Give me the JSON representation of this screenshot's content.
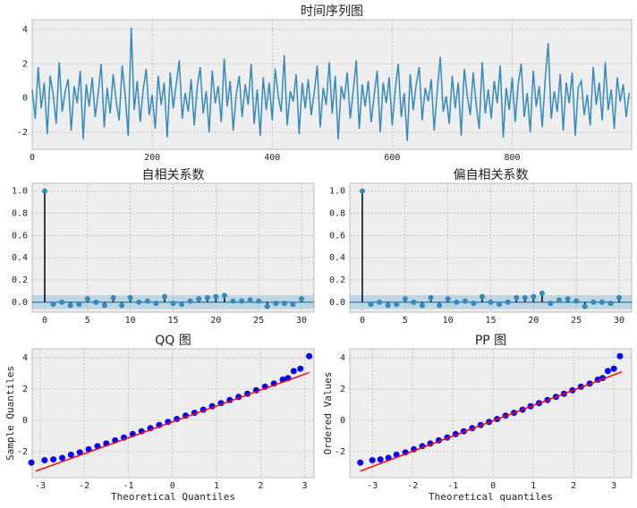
{
  "chart_data": [
    {
      "type": "line",
      "title": "时间序列图",
      "color": "#348ABD",
      "grid": true,
      "xlim": [
        0,
        999
      ],
      "xticks": [
        0,
        200,
        400,
        600,
        800
      ],
      "ylim": [
        -2.99,
        4.57
      ],
      "yticks": [
        -2,
        0,
        2,
        4
      ],
      "x": [
        0,
        5,
        10,
        15,
        20,
        25,
        30,
        35,
        40,
        45,
        50,
        55,
        60,
        65,
        70,
        75,
        80,
        85,
        90,
        95,
        100,
        105,
        110,
        115,
        120,
        125,
        130,
        135,
        140,
        145,
        150,
        155,
        160,
        165,
        170,
        175,
        180,
        185,
        190,
        195,
        200,
        205,
        210,
        215,
        220,
        225,
        230,
        235,
        240,
        245,
        250,
        255,
        260,
        265,
        270,
        275,
        280,
        285,
        290,
        295,
        300,
        305,
        310,
        315,
        320,
        325,
        330,
        335,
        340,
        345,
        350,
        355,
        360,
        365,
        370,
        375,
        380,
        385,
        390,
        395,
        400,
        405,
        410,
        415,
        420,
        425,
        430,
        435,
        440,
        445,
        450,
        455,
        460,
        465,
        470,
        475,
        480,
        485,
        490,
        495,
        500,
        505,
        510,
        515,
        520,
        525,
        530,
        535,
        540,
        545,
        550,
        555,
        560,
        565,
        570,
        575,
        580,
        585,
        590,
        595,
        600,
        605,
        610,
        615,
        620,
        625,
        630,
        635,
        640,
        645,
        650,
        655,
        660,
        665,
        670,
        675,
        680,
        685,
        690,
        695,
        700,
        705,
        710,
        715,
        720,
        725,
        730,
        735,
        740,
        745,
        750,
        755,
        760,
        765,
        770,
        775,
        780,
        785,
        790,
        795,
        800,
        805,
        810,
        815,
        820,
        825,
        830,
        835,
        840,
        845,
        850,
        855,
        860,
        865,
        870,
        875,
        880,
        885,
        890,
        895,
        900,
        905,
        910,
        915,
        920,
        925,
        930,
        935,
        940,
        945,
        950,
        955,
        960,
        965,
        970,
        975,
        980,
        985,
        990,
        995
      ],
      "values": [
        0.5,
        -1.2,
        1.8,
        -0.6,
        0.9,
        -2.1,
        1.3,
        0.2,
        -1.5,
        2.1,
        -0.8,
        0.4,
        1.1,
        -1.9,
        0.7,
        -0.3,
        1.6,
        -2.4,
        0.8,
        -0.5,
        1.2,
        -1.1,
        0.3,
        2.0,
        -1.7,
        0.6,
        -0.9,
        1.4,
        -0.2,
        -1.3,
        1.9,
        0.1,
        -2.2,
        4.1,
        -0.7,
        1.0,
        -1.4,
        0.5,
        1.7,
        -1.0,
        0.2,
        -1.8,
        1.3,
        -0.4,
        0.9,
        -2.3,
        1.5,
        -0.6,
        0.8,
        2.2,
        -1.2,
        0.3,
        -0.8,
        1.1,
        -1.6,
        0.6,
        1.8,
        -0.9,
        0.4,
        -2.0,
        1.6,
        -0.3,
        0.7,
        -1.4,
        2.3,
        -0.5,
        1.0,
        -1.9,
        0.2,
        1.3,
        -1.1,
        0.8,
        -0.4,
        2.0,
        -1.5,
        0.5,
        -2.2,
        1.2,
        -0.7,
        0.9,
        -1.3,
        1.7,
        0.1,
        -0.8,
        2.5,
        -1.6,
        0.4,
        -0.2,
        1.4,
        -2.1,
        0.9,
        -0.6,
        1.1,
        -1.0,
        0.3,
        1.9,
        -1.7,
        0.6,
        -0.4,
        2.1,
        -0.9,
        1.3,
        -2.4,
        0.7,
        -0.1,
        1.5,
        -1.2,
        0.4,
        2.2,
        -1.8,
        0.8,
        -0.5,
        1.0,
        -1.4,
        0.2,
        1.6,
        -2.0,
        0.9,
        -0.3,
        1.2,
        -1.6,
        0.5,
        2.0,
        -1.1,
        0.3,
        -2.5,
        1.4,
        -0.7,
        0.8,
        1.8,
        -1.3,
        0.6,
        -0.2,
        1.1,
        -1.9,
        0.4,
        2.4,
        -0.8,
        0.1,
        -1.5,
        1.3,
        -0.6,
        0.9,
        -2.2,
        1.7,
        0.2,
        -1.0,
        1.5,
        -0.4,
        -1.8,
        2.1,
        -0.9,
        0.5,
        -1.2,
        1.0,
        -0.3,
        1.9,
        -2.3,
        0.6,
        -0.7,
        1.2,
        -1.4,
        0.8,
        2.0,
        -1.1,
        0.3,
        -2.0,
        1.6,
        -0.5,
        0.7,
        -1.7,
        1.1,
        3.2,
        -1.2,
        0.4,
        -0.8,
        1.4,
        -1.9,
        0.9,
        -0.3,
        1.5,
        -2.2,
        0.6,
        1.0,
        -1.0,
        0.2,
        -1.6,
        1.8,
        -0.4,
        0.9,
        -1.3,
        2.1,
        -0.7,
        0.5,
        -1.8,
        1.2,
        -0.2,
        0.8,
        -1.1,
        0.3
      ]
    },
    {
      "type": "stem",
      "title": "自相关系数",
      "color": "#348ABD",
      "grid": true,
      "band": 0.062,
      "xlim": [
        -1.46,
        31.46
      ],
      "xticks": [
        0,
        5,
        10,
        15,
        20,
        25,
        30
      ],
      "ylim": [
        -0.09,
        1.07
      ],
      "yticks": [
        {
          "value": 0,
          "label": "0.0"
        },
        {
          "value": 0.2,
          "label": "0.2"
        },
        {
          "value": 0.4,
          "label": "0.4"
        },
        {
          "value": 0.6,
          "label": "0.6"
        },
        {
          "value": 0.8,
          "label": "0.8"
        },
        {
          "value": 1,
          "label": "1.0"
        }
      ],
      "values": [
        1.0,
        -0.02,
        0.0,
        -0.03,
        -0.02,
        0.03,
        0.0,
        -0.03,
        0.04,
        -0.03,
        0.04,
        0.0,
        0.01,
        -0.01,
        0.05,
        -0.01,
        -0.02,
        0.01,
        0.03,
        0.04,
        0.05,
        0.06,
        0.01,
        0.01,
        0.02,
        0.01,
        -0.04,
        -0.01,
        -0.01,
        -0.02,
        0.03
      ]
    },
    {
      "type": "stem",
      "title": "偏自相关系数",
      "color": "#348ABD",
      "grid": true,
      "band": 0.062,
      "xlim": [
        -1.46,
        31.46
      ],
      "xticks": [
        0,
        5,
        10,
        15,
        20,
        25,
        30
      ],
      "ylim": [
        -0.09,
        1.07
      ],
      "yticks": [
        {
          "value": 0,
          "label": "0.0"
        },
        {
          "value": 0.2,
          "label": "0.2"
        },
        {
          "value": 0.4,
          "label": "0.4"
        },
        {
          "value": 0.6,
          "label": "0.6"
        },
        {
          "value": 0.8,
          "label": "0.8"
        },
        {
          "value": 1,
          "label": "1.0"
        }
      ],
      "values": [
        1.0,
        -0.02,
        0.0,
        -0.03,
        -0.02,
        0.03,
        0.0,
        -0.03,
        0.04,
        -0.03,
        0.03,
        0.0,
        0.01,
        -0.01,
        0.05,
        0.0,
        -0.02,
        0.0,
        0.04,
        0.04,
        0.05,
        0.08,
        -0.01,
        0.02,
        0.03,
        0.01,
        -0.04,
        0.0,
        0.0,
        -0.01,
        0.04
      ]
    },
    {
      "type": "scatter",
      "title": "QQ 图",
      "x_label": "Theoretical Quantiles",
      "y_label": "Sample Quantiles",
      "grid": true,
      "xlim": [
        -3.18,
        3.21
      ],
      "xticks": [
        -3,
        -2,
        -1,
        0,
        1,
        2,
        3
      ],
      "ylim": [
        -3.66,
        4.57
      ],
      "yticks": [
        -2,
        0,
        2,
        4
      ],
      "series": [
        {
          "color": "#0000ff",
          "style": "points",
          "x": [
            -3.2,
            -2.9,
            -2.7,
            -2.5,
            -2.3,
            -2.1,
            -1.9,
            -1.7,
            -1.5,
            -1.3,
            -1.1,
            -0.9,
            -0.7,
            -0.5,
            -0.3,
            -0.1,
            0.1,
            0.3,
            0.5,
            0.7,
            0.9,
            1.1,
            1.3,
            1.5,
            1.7,
            1.9,
            2.1,
            2.3,
            2.5,
            2.62,
            2.75,
            2.9,
            3.1
          ],
          "values": [
            -2.7,
            -2.55,
            -2.5,
            -2.4,
            -2.2,
            -2.05,
            -1.85,
            -1.65,
            -1.48,
            -1.28,
            -1.1,
            -0.88,
            -0.7,
            -0.5,
            -0.3,
            -0.1,
            0.08,
            0.3,
            0.48,
            0.68,
            0.9,
            1.1,
            1.3,
            1.5,
            1.7,
            1.92,
            2.15,
            2.35,
            2.6,
            2.7,
            3.15,
            3.3,
            4.1
          ]
        },
        {
          "color": "#ff0000",
          "style": "line",
          "x": [
            -3.1,
            3.1
          ],
          "values": [
            -3.25,
            3.05
          ]
        }
      ]
    },
    {
      "type": "scatter",
      "title": "PP 图",
      "x_label": "Theoretical quantiles",
      "y_label": "Ordered Values",
      "grid": true,
      "xlim": [
        -3.56,
        3.44
      ],
      "xticks": [
        -3,
        -2,
        -1,
        0,
        1,
        2,
        3
      ],
      "ylim": [
        -3.66,
        4.57
      ],
      "yticks": [
        -2,
        0,
        2,
        4
      ],
      "series": [
        {
          "color": "#0000ff",
          "style": "points",
          "x": [
            -3.3,
            -3.0,
            -2.8,
            -2.6,
            -2.4,
            -2.18,
            -1.97,
            -1.76,
            -1.56,
            -1.35,
            -1.14,
            -0.93,
            -0.73,
            -0.52,
            -0.31,
            -0.1,
            0.1,
            0.31,
            0.52,
            0.73,
            0.93,
            1.14,
            1.35,
            1.56,
            1.76,
            1.97,
            2.18,
            2.4,
            2.6,
            2.72,
            2.85,
            3.0,
            3.15
          ],
          "values": [
            -2.7,
            -2.55,
            -2.5,
            -2.4,
            -2.2,
            -2.05,
            -1.85,
            -1.65,
            -1.48,
            -1.28,
            -1.1,
            -0.88,
            -0.7,
            -0.5,
            -0.3,
            -0.1,
            0.08,
            0.3,
            0.48,
            0.68,
            0.9,
            1.1,
            1.3,
            1.5,
            1.7,
            1.92,
            2.15,
            2.35,
            2.6,
            2.7,
            3.15,
            3.3,
            4.1
          ]
        },
        {
          "color": "#ff0000",
          "style": "line",
          "x": [
            -3.3,
            3.2
          ],
          "values": [
            -3.25,
            3.1
          ]
        }
      ]
    }
  ]
}
